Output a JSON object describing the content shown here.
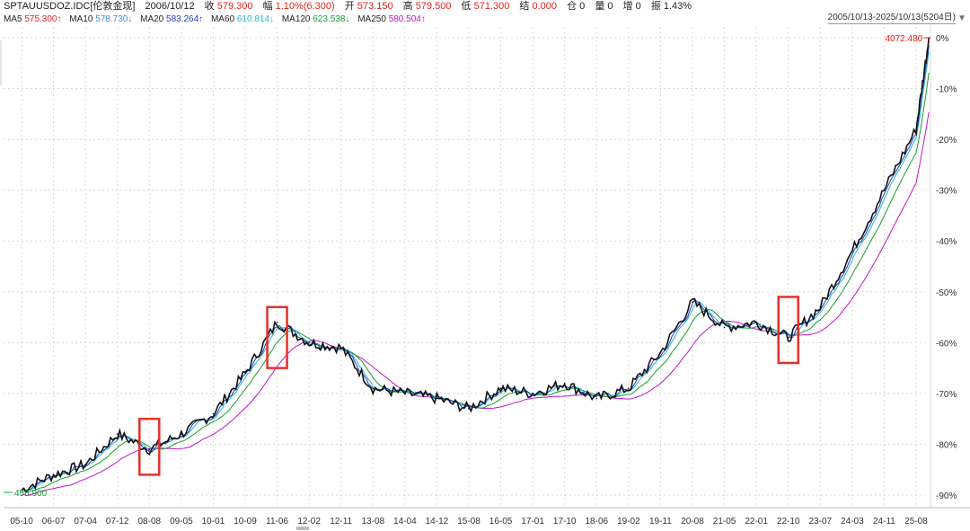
{
  "header": {
    "symbol": "SPTAUUSDOZ.IDC[伦敦金现]",
    "date": "2006/10/12",
    "close_label": "收",
    "close_value": "579.300",
    "change_label": "幅",
    "change_value": "1.10%(6.300)",
    "open_label": "开",
    "open_value": "573.150",
    "high_label": "高",
    "high_value": "579.500",
    "low_label": "低",
    "low_value": "571.300",
    "settle_label": "结",
    "settle_value": "0.000",
    "oi_label": "仓",
    "oi_value": "0",
    "vol_label": "量",
    "vol_value": "0",
    "inc_label": "增",
    "inc_value": "0",
    "amp_label": "振",
    "amp_value": "1.43%"
  },
  "ma": {
    "ma5_label": "MA5",
    "ma5_value": "575.300↑",
    "ma10_label": "MA10",
    "ma10_value": "578.730↓",
    "ma20_label": "MA20",
    "ma20_value": "583.264↑",
    "ma60_label": "MA60",
    "ma60_value": "610.814↓",
    "ma120_label": "MA120",
    "ma120_value": "623.538↓",
    "ma250_label": "MA250",
    "ma250_value": "580.504↑"
  },
  "date_range": "2005/10/13-2025/10/13(5204日)",
  "colors": {
    "ma5": "#e0231c",
    "ma10": "#4a8ddb",
    "ma20": "#1f3fbf",
    "ma60": "#28b8c8",
    "ma120": "#1a9c34",
    "ma250": "#c014c8",
    "price": "#111111",
    "highlight_box": "#e8302a",
    "grid": "#d8d8d8"
  },
  "chart_data": {
    "type": "line",
    "title": "",
    "xlabel": "",
    "ylabel": "",
    "y_axis_ticks": [
      "0%",
      "-10%",
      "-20%",
      "-30%",
      "-40%",
      "-50%",
      "-60%",
      "-70%",
      "-80%",
      "-90%"
    ],
    "ylim": [
      -90,
      0
    ],
    "x_ticks": [
      "05-10",
      "06-07",
      "07-04",
      "07-12",
      "08-08",
      "09-05",
      "10-01",
      "10-09",
      "11-06",
      "12-02",
      "12-11",
      "13-08",
      "14-04",
      "14-12",
      "15-08",
      "16-05",
      "17-01",
      "17-10",
      "18-06",
      "19-02",
      "19-11",
      "20-08",
      "21-05",
      "22-01",
      "22-10",
      "23-07",
      "24-03",
      "24-11",
      "25-08"
    ],
    "annotations": {
      "max_label": "4072.480",
      "min_label": "456.900"
    },
    "series": [
      {
        "name": "",
        "x": [
          "05-10",
          "06-07",
          "07-04",
          "07-12",
          "08-08",
          "09-05",
          "10-01",
          "10-09",
          "11-06",
          "12-02",
          "12-11",
          "13-08",
          "14-04",
          "14-12",
          "15-08",
          "16-05",
          "17-01",
          "17-10",
          "18-06",
          "19-02",
          "19-11",
          "20-08",
          "21-05",
          "22-01",
          "22-10",
          "23-07",
          "24-03",
          "24-11",
          "25-08",
          "25-10"
        ],
        "values": [
          -89,
          -86,
          -84,
          -78,
          -81,
          -78,
          -74,
          -66,
          -56,
          -60,
          -61,
          -69,
          -70,
          -71,
          -73,
          -69,
          -70,
          -68,
          -71,
          -69,
          -62,
          -52,
          -57,
          -56,
          -59,
          -53,
          -42,
          -30,
          -18,
          0
        ]
      }
    ],
    "highlight_regions": [
      {
        "x_start": "08-08",
        "x_end": "08-08",
        "y_top": -75,
        "y_bottom": -86
      },
      {
        "x_start": "11-06",
        "x_end": "11-06",
        "y_top": -53,
        "y_bottom": -65
      },
      {
        "x_start": "22-10",
        "x_end": "22-10",
        "y_top": -51,
        "y_bottom": -64
      }
    ]
  }
}
